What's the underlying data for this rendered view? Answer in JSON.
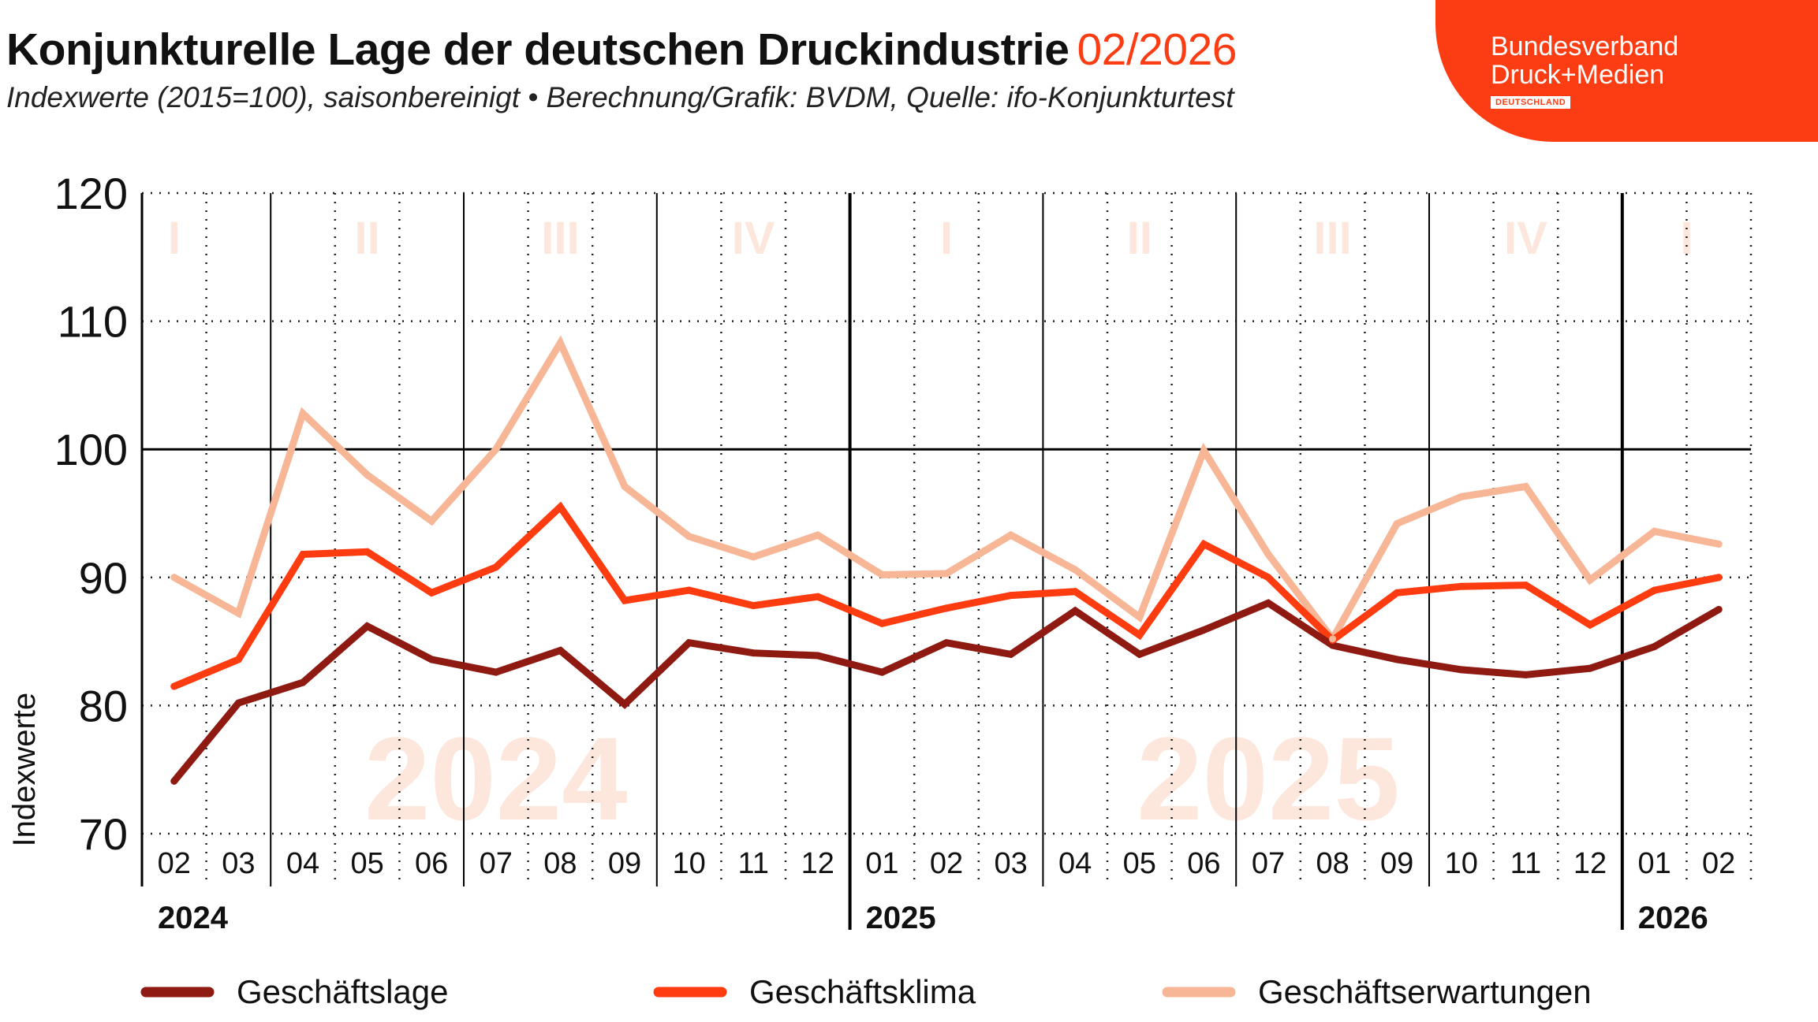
{
  "header": {
    "title": "Konjunkturelle Lage der deutschen Druckindustrie",
    "date": "02/2026",
    "subtitle": "Indexwerte (2015=100), saisonbereinigt • Berechnung/Grafik: BVDM, Quelle: ifo-Konjunkturtest"
  },
  "logo": {
    "line1": "Bundesverband",
    "line2": "Druck+Medien",
    "badge": "DEUTSCHLAND"
  },
  "colors": {
    "accent": "#fc3d14",
    "lage": "#8e1a12",
    "klima": "#ff3b10",
    "erwartungen": "#f7b797",
    "watermark": "#fde7dc"
  },
  "chart_data": {
    "type": "line",
    "ylabel": "Indexwerte",
    "ylim": [
      70,
      120
    ],
    "yticks": [
      70,
      80,
      90,
      100,
      110,
      120
    ],
    "categories": [
      "02",
      "03",
      "04",
      "05",
      "06",
      "07",
      "08",
      "09",
      "10",
      "11",
      "12",
      "01",
      "02",
      "03",
      "04",
      "05",
      "06",
      "07",
      "08",
      "09",
      "10",
      "11",
      "12",
      "01",
      "02"
    ],
    "years": [
      {
        "label": "2024",
        "start_index": 0
      },
      {
        "label": "2025",
        "start_index": 11
      },
      {
        "label": "2026",
        "start_index": 23
      }
    ],
    "quarters": [
      {
        "label": "I",
        "from": 0,
        "to": 0
      },
      {
        "label": "II",
        "from": 2,
        "to": 4
      },
      {
        "label": "III",
        "from": 5,
        "to": 7
      },
      {
        "label": "IV",
        "from": 8,
        "to": 10
      },
      {
        "label": "I",
        "from": 11,
        "to": 13
      },
      {
        "label": "II",
        "from": 14,
        "to": 16
      },
      {
        "label": "III",
        "from": 17,
        "to": 19
      },
      {
        "label": "IV",
        "from": 20,
        "to": 22
      },
      {
        "label": "I",
        "from": 23,
        "to": 24
      }
    ],
    "watermarks": [
      {
        "label": "2024",
        "center_index": 5
      },
      {
        "label": "2025",
        "center_index": 17
      }
    ],
    "reference_line": 100,
    "grid": true,
    "legend_position": "bottom",
    "series": [
      {
        "name": "Geschäftslage",
        "color": "#8e1a12",
        "values": [
          74.1,
          80.2,
          81.8,
          86.2,
          83.6,
          82.6,
          84.3,
          80.1,
          84.9,
          84.1,
          83.9,
          82.6,
          84.9,
          84.0,
          87.4,
          84.0,
          85.9,
          88.0,
          84.7,
          83.6,
          82.8,
          82.4,
          82.9,
          84.6,
          87.5
        ]
      },
      {
        "name": "Geschäftsklima",
        "color": "#ff3b10",
        "values": [
          81.5,
          83.6,
          91.8,
          92.0,
          88.8,
          90.8,
          95.5,
          88.2,
          89.0,
          87.8,
          88.5,
          86.4,
          87.6,
          88.6,
          88.9,
          85.5,
          92.6,
          90.0,
          85.1,
          88.8,
          89.3,
          89.4,
          86.3,
          89.0,
          90.0
        ]
      },
      {
        "name": "Geschäftserwartungen",
        "color": "#f7b797",
        "values": [
          90.0,
          87.2,
          102.8,
          98.0,
          94.4,
          100.0,
          108.3,
          97.1,
          93.2,
          91.6,
          93.3,
          90.2,
          90.3,
          93.3,
          90.6,
          86.9,
          99.9,
          91.8,
          85.2,
          94.2,
          96.3,
          97.1,
          89.8,
          93.6,
          92.6
        ]
      }
    ]
  }
}
